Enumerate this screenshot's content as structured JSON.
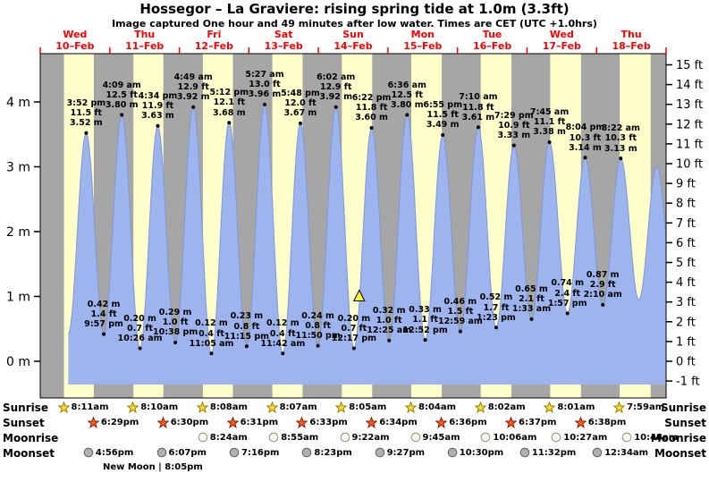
{
  "title": "Hossegor – La Graviere: rising spring tide at 1.0m (3.3ft)",
  "subtitle": "Image captured One hour and 49 minutes after low water. Times are CET (UTC +1.0hrs)",
  "colors": {
    "night_band": "#a6a6a6",
    "day_band": "#ffffcc",
    "tide_fill": "#9db4ee",
    "tide_line": "#7d97d8",
    "day_label": "#ff0000",
    "marker_fill": "#f7f73e",
    "sunrise_star": "#ffdd30",
    "sunset_star": "#ff5a1e",
    "moonrise_circle": "#fffdf0",
    "moonset_circle": "#b0b0b0"
  },
  "chart_data": {
    "type": "area",
    "series_name": "Tide height",
    "x_axis": "time, 9 days from Wed 10-Feb 00:00 to Thu 18-Feb 24:00, day bands = daylight, gray = night",
    "axes": {
      "left": {
        "unit": "m",
        "ticks": [
          0,
          1,
          2,
          3,
          4
        ]
      },
      "right": {
        "unit": "ft",
        "min": -1,
        "max": 15
      }
    },
    "days": [
      {
        "name": "Wed",
        "date": "10–Feb"
      },
      {
        "name": "Thu",
        "date": "11–Feb"
      },
      {
        "name": "Fri",
        "date": "12–Feb"
      },
      {
        "name": "Sat",
        "date": "13–Feb"
      },
      {
        "name": "Sun",
        "date": "14–Feb"
      },
      {
        "name": "Mon",
        "date": "15–Feb"
      },
      {
        "name": "Tue",
        "date": "16–Feb"
      },
      {
        "name": "Wed",
        "date": "17–Feb"
      },
      {
        "name": "Thu",
        "date": "18–Feb"
      }
    ],
    "extremes": [
      {
        "day": 0,
        "type": "high",
        "time": "3:52 pm",
        "height_ft": 11.5,
        "height_m": 3.52
      },
      {
        "day": 0,
        "type": "low",
        "time": "9:57 pm",
        "height_ft": 1.4,
        "height_m": 0.42
      },
      {
        "day": 1,
        "type": "high",
        "time": "4:09 am",
        "height_ft": 12.5,
        "height_m": 3.8
      },
      {
        "day": 1,
        "type": "low",
        "time": "10:26 am",
        "height_ft": 0.7,
        "height_m": 0.2
      },
      {
        "day": 1,
        "type": "high",
        "time": "4:34 pm",
        "height_ft": 11.9,
        "height_m": 3.63
      },
      {
        "day": 1,
        "type": "low",
        "time": "10:38 pm",
        "height_ft": 1.0,
        "height_m": 0.29
      },
      {
        "day": 2,
        "type": "high",
        "time": "4:49 am",
        "height_ft": 12.9,
        "height_m": 3.92
      },
      {
        "day": 2,
        "type": "low",
        "time": "11:05 am",
        "height_ft": 0.4,
        "height_m": 0.12
      },
      {
        "day": 2,
        "type": "high",
        "time": "5:12 pm",
        "height_ft": 12.1,
        "height_m": 3.68
      },
      {
        "day": 2,
        "type": "low",
        "time": "11:15 pm",
        "height_ft": 0.8,
        "height_m": 0.23
      },
      {
        "day": 3,
        "type": "high",
        "time": "5:27 am",
        "height_ft": 13.0,
        "height_m": 3.96
      },
      {
        "day": 3,
        "type": "low",
        "time": "11:42 am",
        "height_ft": 0.4,
        "height_m": 0.12
      },
      {
        "day": 3,
        "type": "high",
        "time": "5:48 pm",
        "height_ft": 12.0,
        "height_m": 3.67
      },
      {
        "day": 3,
        "type": "low",
        "time": "11:50 pm",
        "height_ft": 0.8,
        "height_m": 0.24
      },
      {
        "day": 4,
        "type": "high",
        "time": "6:02 am",
        "height_ft": 12.9,
        "height_m": 3.92
      },
      {
        "day": 4,
        "type": "low",
        "time": "12:17 pm",
        "height_ft": 0.7,
        "height_m": 0.2
      },
      {
        "day": 4,
        "type": "high",
        "time": "6:22 pm",
        "height_ft": 11.8,
        "height_m": 3.6
      },
      {
        "day": 5,
        "type": "low",
        "time": "12:25 am",
        "height_ft": 1.0,
        "height_m": 0.32
      },
      {
        "day": 5,
        "type": "high",
        "time": "6:36 am",
        "height_ft": 12.5,
        "height_m": 3.8
      },
      {
        "day": 5,
        "type": "low",
        "time": "12:52 pm",
        "height_ft": 1.1,
        "height_m": 0.33
      },
      {
        "day": 5,
        "type": "high",
        "time": "6:55 pm",
        "height_ft": 11.5,
        "height_m": 3.49
      },
      {
        "day": 6,
        "type": "low",
        "time": "12:59 am",
        "height_ft": 1.5,
        "height_m": 0.46
      },
      {
        "day": 6,
        "type": "high",
        "time": "7:10 am",
        "height_ft": 11.8,
        "height_m": 3.61
      },
      {
        "day": 6,
        "type": "low",
        "time": "1:23 pm",
        "height_ft": 1.7,
        "height_m": 0.52
      },
      {
        "day": 6,
        "type": "high",
        "time": "7:29 pm",
        "height_ft": 10.9,
        "height_m": 3.33
      },
      {
        "day": 7,
        "type": "low",
        "time": "1:33 am",
        "height_ft": 2.1,
        "height_m": 0.65
      },
      {
        "day": 7,
        "type": "high",
        "time": "7:45 am",
        "height_ft": 11.1,
        "height_m": 3.38
      },
      {
        "day": 7,
        "type": "low",
        "time": "1:57 pm",
        "height_ft": 2.4,
        "height_m": 0.74
      },
      {
        "day": 7,
        "type": "high",
        "time": "8:04 pm",
        "height_ft": 10.3,
        "height_m": 3.14
      },
      {
        "day": 8,
        "type": "low",
        "time": "2:10 am",
        "height_ft": 2.9,
        "height_m": 0.87
      },
      {
        "day": 8,
        "type": "high",
        "time": "8:22 am",
        "height_ft": 10.3,
        "height_m": 3.13
      }
    ],
    "current_marker": {
      "height_m": 1.0,
      "position_hours": 110.1
    }
  },
  "sun_moon": {
    "sunrise": {
      "label": "Sunrise",
      "events": [
        {
          "day": 0,
          "time": "8:11am"
        },
        {
          "day": 1,
          "time": "8:10am"
        },
        {
          "day": 2,
          "time": "8:08am"
        },
        {
          "day": 3,
          "time": "8:07am"
        },
        {
          "day": 4,
          "time": "8:05am"
        },
        {
          "day": 5,
          "time": "8:04am"
        },
        {
          "day": 6,
          "time": "8:02am"
        },
        {
          "day": 7,
          "time": "8:01am"
        },
        {
          "day": 8,
          "time": "7:59am"
        }
      ]
    },
    "sunset": {
      "label": "Sunset",
      "events": [
        {
          "day": 0,
          "time": "6:29pm"
        },
        {
          "day": 1,
          "time": "6:30pm"
        },
        {
          "day": 2,
          "time": "6:31pm"
        },
        {
          "day": 3,
          "time": "6:33pm"
        },
        {
          "day": 4,
          "time": "6:34pm"
        },
        {
          "day": 5,
          "time": "6:36pm"
        },
        {
          "day": 6,
          "time": "6:37pm"
        },
        {
          "day": 7,
          "time": "6:38pm"
        }
      ]
    },
    "moonrise": {
      "label": "Moonrise",
      "events": [
        {
          "day": 2,
          "time": "8:24am"
        },
        {
          "day": 3,
          "time": "8:55am"
        },
        {
          "day": 4,
          "time": "9:22am"
        },
        {
          "day": 5,
          "time": "9:45am"
        },
        {
          "day": 6,
          "time": "10:06am"
        },
        {
          "day": 7,
          "time": "10:27am"
        },
        {
          "day": 8,
          "time": "10:48am"
        }
      ]
    },
    "moonset": {
      "label": "Moonset",
      "events": [
        {
          "day": 0,
          "time": "4:56pm"
        },
        {
          "day": 1,
          "time": "6:07pm"
        },
        {
          "day": 2,
          "time": "7:16pm"
        },
        {
          "day": 3,
          "time": "8:23pm"
        },
        {
          "day": 4,
          "time": "9:27pm"
        },
        {
          "day": 5,
          "time": "10:30pm"
        },
        {
          "day": 6,
          "time": "11:32pm"
        },
        {
          "day": 8,
          "time": "12:34am"
        }
      ]
    },
    "moon_phase": "New Moon | 8:05pm"
  }
}
